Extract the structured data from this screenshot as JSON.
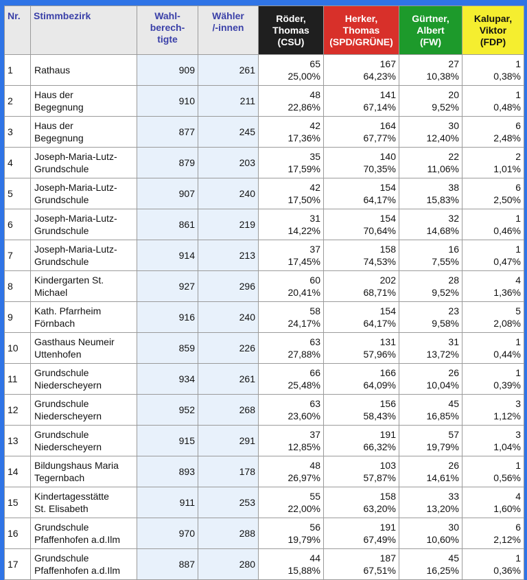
{
  "headers": {
    "nr": "Nr.",
    "bezirk": "Stimmbezirk",
    "wahlberechtigte": [
      "Wahl-",
      "berech-",
      "tigte"
    ],
    "waehler": [
      "Wähler",
      "/-innen"
    ],
    "candidates": [
      {
        "name": [
          "Röder,",
          "Thomas"
        ],
        "party": "(CSU)",
        "color": "#1f1f1f"
      },
      {
        "name": [
          "Herker,",
          "Thomas"
        ],
        "party": "(SPD/GRÜNE)",
        "color": "#d8302a"
      },
      {
        "name": [
          "Gürtner,",
          "Albert"
        ],
        "party": "(FW)",
        "color": "#1d9a2b"
      },
      {
        "name": [
          "Kalupar,",
          "Viktor"
        ],
        "party": "(FDP)",
        "color": "#f5ee2f"
      }
    ]
  },
  "rows": [
    {
      "nr": "1",
      "bezirk": [
        "Rathaus"
      ],
      "wb": "909",
      "w": "261",
      "res": [
        [
          "65",
          "25,00%"
        ],
        [
          "167",
          "64,23%"
        ],
        [
          "27",
          "10,38%"
        ],
        [
          "1",
          "0,38%"
        ]
      ]
    },
    {
      "nr": "2",
      "bezirk": [
        "Haus der",
        "Begegnung"
      ],
      "wb": "910",
      "w": "211",
      "res": [
        [
          "48",
          "22,86%"
        ],
        [
          "141",
          "67,14%"
        ],
        [
          "20",
          "9,52%"
        ],
        [
          "1",
          "0,48%"
        ]
      ]
    },
    {
      "nr": "3",
      "bezirk": [
        "Haus der",
        "Begegnung"
      ],
      "wb": "877",
      "w": "245",
      "res": [
        [
          "42",
          "17,36%"
        ],
        [
          "164",
          "67,77%"
        ],
        [
          "30",
          "12,40%"
        ],
        [
          "6",
          "2,48%"
        ]
      ]
    },
    {
      "nr": "4",
      "bezirk": [
        "Joseph-Maria-Lutz-",
        "Grundschule"
      ],
      "wb": "879",
      "w": "203",
      "res": [
        [
          "35",
          "17,59%"
        ],
        [
          "140",
          "70,35%"
        ],
        [
          "22",
          "11,06%"
        ],
        [
          "2",
          "1,01%"
        ]
      ]
    },
    {
      "nr": "5",
      "bezirk": [
        "Joseph-Maria-Lutz-",
        "Grundschule"
      ],
      "wb": "907",
      "w": "240",
      "res": [
        [
          "42",
          "17,50%"
        ],
        [
          "154",
          "64,17%"
        ],
        [
          "38",
          "15,83%"
        ],
        [
          "6",
          "2,50%"
        ]
      ]
    },
    {
      "nr": "6",
      "bezirk": [
        "Joseph-Maria-Lutz-",
        "Grundschule"
      ],
      "wb": "861",
      "w": "219",
      "res": [
        [
          "31",
          "14,22%"
        ],
        [
          "154",
          "70,64%"
        ],
        [
          "32",
          "14,68%"
        ],
        [
          "1",
          "0,46%"
        ]
      ]
    },
    {
      "nr": "7",
      "bezirk": [
        "Joseph-Maria-Lutz-",
        "Grundschule"
      ],
      "wb": "914",
      "w": "213",
      "res": [
        [
          "37",
          "17,45%"
        ],
        [
          "158",
          "74,53%"
        ],
        [
          "16",
          "7,55%"
        ],
        [
          "1",
          "0,47%"
        ]
      ]
    },
    {
      "nr": "8",
      "bezirk": [
        "Kindergarten St.",
        "Michael"
      ],
      "wb": "927",
      "w": "296",
      "res": [
        [
          "60",
          "20,41%"
        ],
        [
          "202",
          "68,71%"
        ],
        [
          "28",
          "9,52%"
        ],
        [
          "4",
          "1,36%"
        ]
      ]
    },
    {
      "nr": "9",
      "bezirk": [
        "Kath. Pfarrheim",
        "Förnbach"
      ],
      "wb": "916",
      "w": "240",
      "res": [
        [
          "58",
          "24,17%"
        ],
        [
          "154",
          "64,17%"
        ],
        [
          "23",
          "9,58%"
        ],
        [
          "5",
          "2,08%"
        ]
      ]
    },
    {
      "nr": "10",
      "bezirk": [
        "Gasthaus Neumeir",
        "Uttenhofen"
      ],
      "wb": "859",
      "w": "226",
      "res": [
        [
          "63",
          "27,88%"
        ],
        [
          "131",
          "57,96%"
        ],
        [
          "31",
          "13,72%"
        ],
        [
          "1",
          "0,44%"
        ]
      ]
    },
    {
      "nr": "11",
      "bezirk": [
        "Grundschule",
        "Niederscheyern"
      ],
      "wb": "934",
      "w": "261",
      "res": [
        [
          "66",
          "25,48%"
        ],
        [
          "166",
          "64,09%"
        ],
        [
          "26",
          "10,04%"
        ],
        [
          "1",
          "0,39%"
        ]
      ]
    },
    {
      "nr": "12",
      "bezirk": [
        "Grundschule",
        "Niederscheyern"
      ],
      "wb": "952",
      "w": "268",
      "res": [
        [
          "63",
          "23,60%"
        ],
        [
          "156",
          "58,43%"
        ],
        [
          "45",
          "16,85%"
        ],
        [
          "3",
          "1,12%"
        ]
      ]
    },
    {
      "nr": "13",
      "bezirk": [
        "Grundschule",
        "Niederscheyern"
      ],
      "wb": "915",
      "w": "291",
      "res": [
        [
          "37",
          "12,85%"
        ],
        [
          "191",
          "66,32%"
        ],
        [
          "57",
          "19,79%"
        ],
        [
          "3",
          "1,04%"
        ]
      ]
    },
    {
      "nr": "14",
      "bezirk": [
        "Bildungshaus Maria",
        "Tegernbach"
      ],
      "wb": "893",
      "w": "178",
      "res": [
        [
          "48",
          "26,97%"
        ],
        [
          "103",
          "57,87%"
        ],
        [
          "26",
          "14,61%"
        ],
        [
          "1",
          "0,56%"
        ]
      ]
    },
    {
      "nr": "15",
      "bezirk": [
        "Kindertagesstätte",
        "St. Elisabeth"
      ],
      "wb": "911",
      "w": "253",
      "res": [
        [
          "55",
          "22,00%"
        ],
        [
          "158",
          "63,20%"
        ],
        [
          "33",
          "13,20%"
        ],
        [
          "4",
          "1,60%"
        ]
      ]
    },
    {
      "nr": "16",
      "bezirk": [
        "Grundschule",
        "Pfaffenhofen a.d.Ilm"
      ],
      "wb": "970",
      "w": "288",
      "res": [
        [
          "56",
          "19,79%"
        ],
        [
          "191",
          "67,49%"
        ],
        [
          "30",
          "10,60%"
        ],
        [
          "6",
          "2,12%"
        ]
      ]
    },
    {
      "nr": "17",
      "bezirk": [
        "Grundschule",
        "Pfaffenhofen a.d.Ilm"
      ],
      "wb": "887",
      "w": "280",
      "res": [
        [
          "44",
          "15,88%"
        ],
        [
          "187",
          "67,51%"
        ],
        [
          "45",
          "16,25%"
        ],
        [
          "1",
          "0,36%"
        ]
      ]
    }
  ]
}
